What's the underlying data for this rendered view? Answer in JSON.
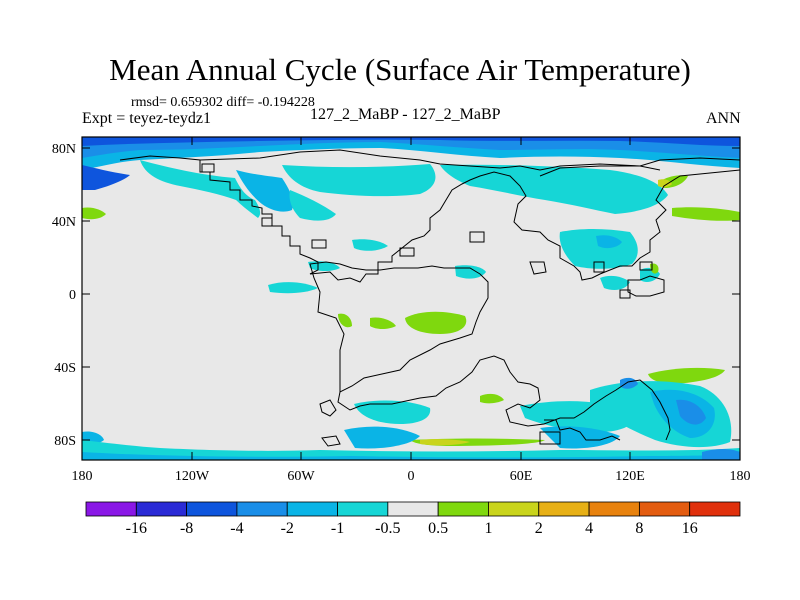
{
  "header": {
    "title": "Mean Annual Cycle (Surface Air Temperature)",
    "stats": "rmsd= 0.659302 diff= -0.194228",
    "expt": "Expt = teyez-teydz1",
    "center_label": "127_2_MaBP - 127_2_MaBP",
    "season": "ANN"
  },
  "map": {
    "lat_labels": [
      "80N",
      "40N",
      "0",
      "40S",
      "80S"
    ],
    "lon_labels": [
      "180",
      "120W",
      "60W",
      "0",
      "60E",
      "120E",
      "180"
    ]
  },
  "colorbar": {
    "levels": [
      "-16",
      "-8",
      "-4",
      "-2",
      "-1",
      "-0.5",
      "0.5",
      "1",
      "2",
      "4",
      "8",
      "16"
    ],
    "colors": [
      "#8a17e6",
      "#2b2bd6",
      "#0e55dd",
      "#1a8ee8",
      "#0ab4e6",
      "#16d6d6",
      "#e8e8e8",
      "#7fd80e",
      "#c9d41c",
      "#e7b016",
      "#e8820e",
      "#e35c10",
      "#e0300c"
    ]
  },
  "palette": {
    "neutral": "#e8e8e8",
    "cyan": "#16d6d6",
    "lightblue": "#0ab4e6",
    "midblue": "#1a8ee8",
    "blue": "#0e55dd",
    "green": "#7fd80e",
    "yellow": "#c9d41c"
  }
}
